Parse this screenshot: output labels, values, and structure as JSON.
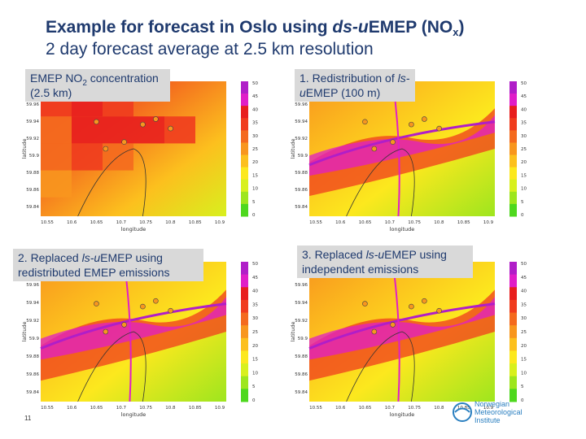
{
  "title": {
    "line1_prefix": "Example for forecast in Oslo using ",
    "line1_italic": "ds-u",
    "line1_mid": "EMEP (NO",
    "line1_sub": "x",
    "line1_end": ")",
    "line2": "2 day forecast average at 2.5 km resolution"
  },
  "panels": [
    {
      "label_pre": "EMEP NO",
      "label_sub": "2",
      "label_post": " concentration (2.5 km)"
    },
    {
      "label_pre": "1. Redistribution of ",
      "label_italic": "ls-u",
      "label_post": "EMEP (100 m)"
    },
    {
      "label_pre": "2. Replaced ",
      "label_italic": "ls-u",
      "label_post": "EMEP using redistributed EMEP emissions"
    },
    {
      "label_pre": "3. Replaced ",
      "label_italic": "ls-u",
      "label_post": "EMEP using independent emissions"
    }
  ],
  "axes": {
    "xlabel": "longitude",
    "ylabel": "latitude",
    "x_ticks": [
      "10.55",
      "10.6",
      "10.65",
      "10.7",
      "10.75",
      "10.8",
      "10.85",
      "10.9"
    ],
    "y_ticks": [
      "59.96",
      "59.94",
      "59.92",
      "59.9",
      "59.88",
      "59.86",
      "59.84"
    ],
    "colorbar_ticks": [
      "50",
      "45",
      "40",
      "35",
      "30",
      "25",
      "20",
      "15",
      "10",
      "5",
      "0"
    ]
  },
  "colorbar_colors": [
    "#b01ec8",
    "#e01ec8",
    "#e81e1e",
    "#f03c1e",
    "#f46a1e",
    "#f8961e",
    "#fcc01e",
    "#fce81e",
    "#d8f01e",
    "#9ee61e",
    "#4ed81e"
  ],
  "footer": {
    "slide_number": "11",
    "logo_line1": "Norwegian",
    "logo_line2": "Meteorological",
    "logo_line3": "Institute"
  }
}
